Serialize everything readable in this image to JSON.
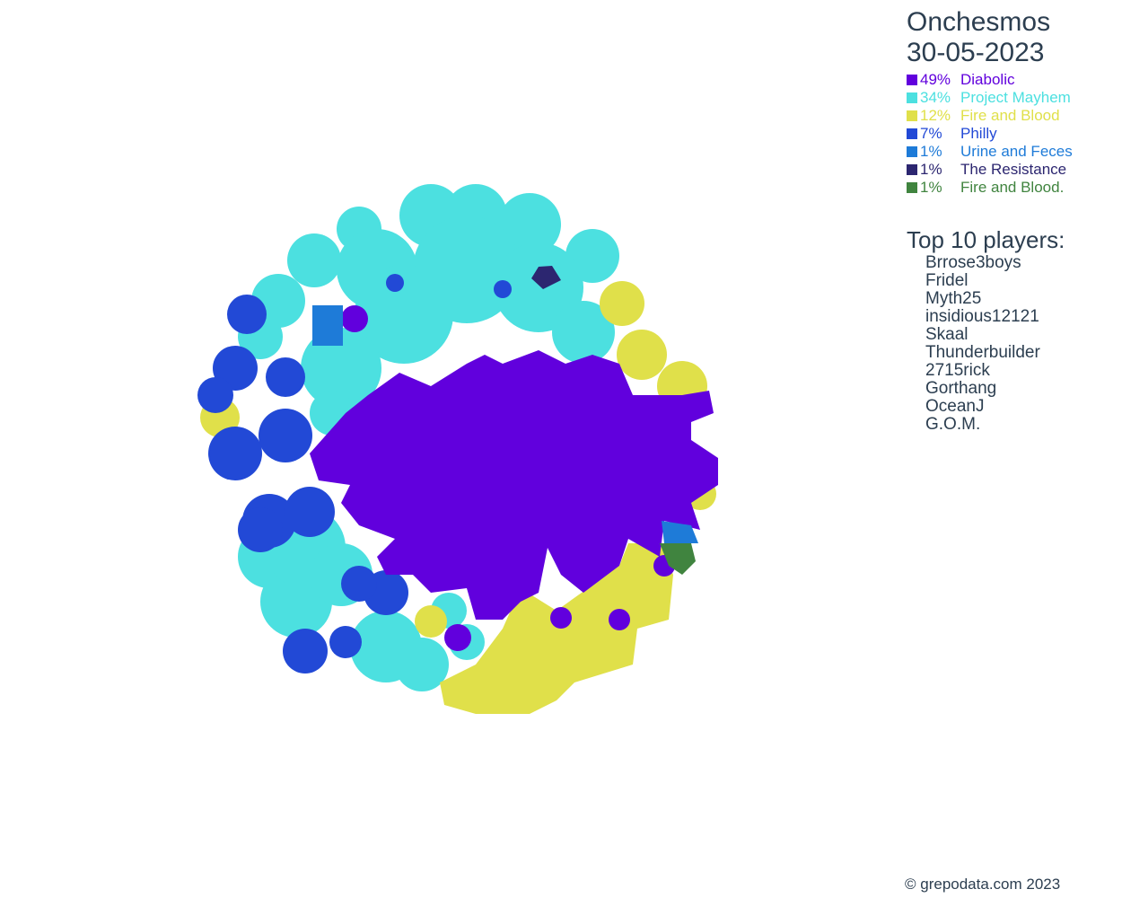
{
  "title": {
    "world": "Onchesmos",
    "date": "30-05-2023"
  },
  "legend": [
    {
      "pct": "49%",
      "name": "Diabolic",
      "color": "#6100dd"
    },
    {
      "pct": "34%",
      "name": "Project Mayhem",
      "color": "#4ce0e0"
    },
    {
      "pct": "12%",
      "name": "Fire and Blood",
      "color": "#e0e04a"
    },
    {
      "pct": "7%",
      "name": "Philly",
      "color": "#2249d6"
    },
    {
      "pct": "1%",
      "name": "Urine and Feces",
      "color": "#1e7bd8"
    },
    {
      "pct": "1%",
      "name": "The Resistance",
      "color": "#2c2670"
    },
    {
      "pct": "1%",
      "name": "Fire and Blood.",
      "color": "#40843f"
    }
  ],
  "top_players": {
    "heading": "Top 10 players:",
    "players": [
      "Brrose3boys",
      "Fridel",
      "Myth25",
      "insidious12121",
      "Skaal",
      "Thunderbuilder",
      "2715rick",
      "Gorthang",
      "OceanJ",
      "G.O.M."
    ]
  },
  "footer": "© grepodata.com 2023"
}
